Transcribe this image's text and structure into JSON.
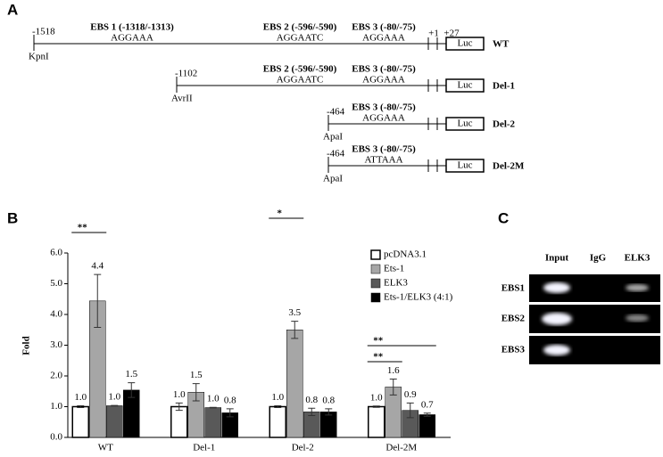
{
  "panel_a": {
    "label": "A",
    "tss_labels": [
      "+1",
      "+27"
    ],
    "constructs": [
      {
        "name": "WT",
        "start": "-1518",
        "site": "KpnI",
        "luc": "Luc",
        "elements": [
          {
            "title": "EBS 1 (-1318/-1313)",
            "sequence": "AGGAAA"
          },
          {
            "title": "EBS 2 (-596/-590)",
            "sequence": "AGGAATC"
          },
          {
            "title": "EBS 3 (-80/-75)",
            "sequence": "AGGAAA"
          }
        ]
      },
      {
        "name": "Del-1",
        "start": "-1102",
        "site": "AvrII",
        "luc": "Luc",
        "elements": [
          {
            "title": "EBS 2 (-596/-590)",
            "sequence": "AGGAATC"
          },
          {
            "title": "EBS 3 (-80/-75)",
            "sequence": "AGGAAA"
          }
        ]
      },
      {
        "name": "Del-2",
        "start": "-464",
        "site": "ApaI",
        "luc": "Luc",
        "elements": [
          {
            "title": "EBS 3 (-80/-75)",
            "sequence": "AGGAAA"
          }
        ]
      },
      {
        "name": "Del-2M",
        "start": "-464",
        "site": "ApaI",
        "luc": "Luc",
        "elements": [
          {
            "title": "EBS 3 (-80/-75)",
            "sequence": "ATTAAA"
          }
        ]
      }
    ]
  },
  "chart_data": {
    "type": "bar",
    "panel_label": "B",
    "y_label": "Fold",
    "categories": [
      "WT",
      "Del-1",
      "Del-2",
      "Del-2M"
    ],
    "ylim": [
      0,
      6
    ],
    "yticks": [
      {
        "value": 0,
        "label": "0.0"
      },
      {
        "value": 1,
        "label": "1.0"
      },
      {
        "value": 2,
        "label": "2.0"
      },
      {
        "value": 3,
        "label": "3.0"
      },
      {
        "value": 4,
        "label": "4.0"
      },
      {
        "value": 5,
        "label": "5.0"
      },
      {
        "value": 6,
        "label": "6.0"
      }
    ],
    "grid": false,
    "legend": "upper right",
    "series": [
      {
        "name": "pcDNA3.1",
        "color": "#ffffff",
        "values": [
          1,
          1,
          1,
          1
        ],
        "value_labels": [
          "1.0",
          "1.0",
          "1.0",
          "1.0"
        ],
        "errors": [
          0.03,
          0.12,
          0.03,
          0.02
        ]
      },
      {
        "name": "Ets-1",
        "color": "#a6a6a6",
        "values": [
          4.44,
          1.47,
          3.5,
          1.64
        ],
        "value_labels": [
          "4.4",
          "1.5",
          "3.5",
          "1.6"
        ],
        "errors": [
          0.86,
          0.28,
          0.28,
          0.26
        ]
      },
      {
        "name": "ELK3",
        "color": "#595959",
        "values": [
          1.03,
          0.97,
          0.83,
          0.88
        ],
        "value_labels": [
          "1.0",
          "1.0",
          "0.8",
          "0.9"
        ],
        "errors": [
          0.01,
          0.01,
          0.12,
          0.24
        ]
      },
      {
        "name": "Ets-1/ELK3 (4:1)",
        "color": "#000000",
        "values": [
          1.54,
          0.8,
          0.83,
          0.74
        ],
        "value_labels": [
          "1.5",
          "0.8",
          "0.8",
          "0.7"
        ],
        "errors": [
          0.24,
          0.13,
          0.1,
          0.05
        ]
      }
    ],
    "annotations": [
      "**",
      "*",
      "**",
      "**"
    ]
  },
  "panel_c": {
    "label": "C",
    "columns": [
      "Input",
      "IgG",
      "ELK3"
    ],
    "rows": [
      "EBS1",
      "EBS2",
      "EBS3"
    ]
  }
}
